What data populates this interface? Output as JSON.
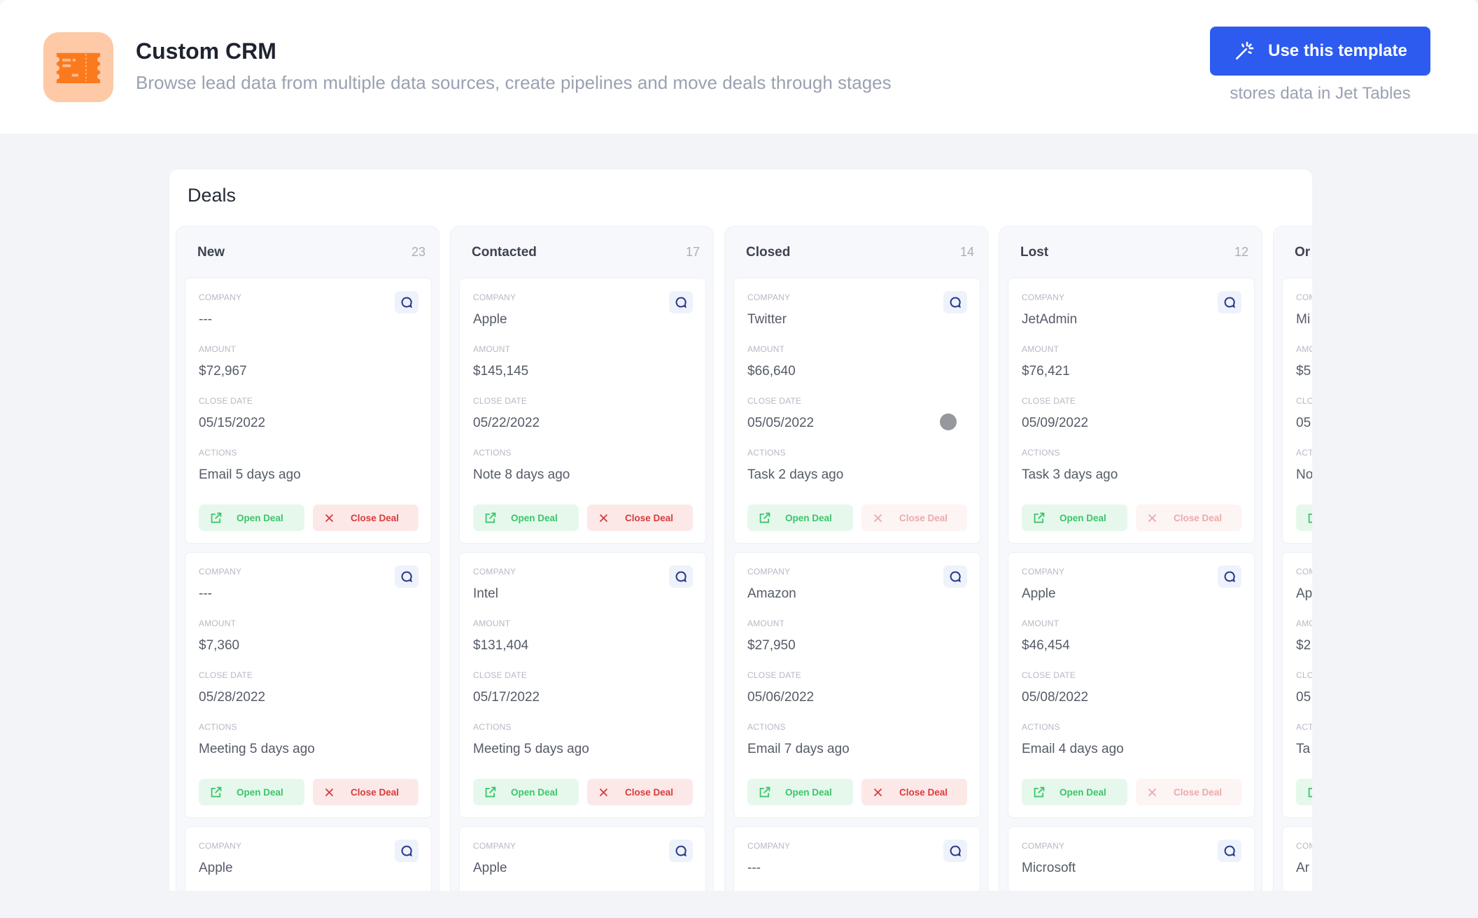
{
  "header": {
    "title": "Custom CRM",
    "subtitle": "Browse lead data from multiple data sources, create pipelines and move deals through stages",
    "use_template_label": "Use this template",
    "stores_note": "stores data in Jet Tables",
    "logo_icon": "ticket-icon",
    "accent_color": "#2d5bf0"
  },
  "board": {
    "title": "Deals",
    "labels": {
      "company": "Company",
      "amount": "Amount",
      "close_date": "Close Date",
      "actions": "Actions"
    },
    "open_label": "Open Deal",
    "close_label": "Close Deal",
    "columns": [
      {
        "name": "New",
        "count": "23",
        "cards": [
          {
            "company": "---",
            "amount": "$72,967",
            "close_date": "05/15/2022",
            "actions": "Email 5 days ago",
            "close_enabled": true
          },
          {
            "company": "---",
            "amount": "$7,360",
            "close_date": "05/28/2022",
            "actions": "Meeting 5 days ago",
            "close_enabled": true
          },
          {
            "company": "Apple"
          }
        ]
      },
      {
        "name": "Contacted",
        "count": "17",
        "cards": [
          {
            "company": "Apple",
            "amount": "$145,145",
            "close_date": "05/22/2022",
            "actions": "Note 8 days ago",
            "close_enabled": true
          },
          {
            "company": "Intel",
            "amount": "$131,404",
            "close_date": "05/17/2022",
            "actions": "Meeting 5 days ago",
            "close_enabled": true
          },
          {
            "company": "Apple"
          }
        ]
      },
      {
        "name": "Closed",
        "count": "14",
        "cards": [
          {
            "company": "Twitter",
            "amount": "$66,640",
            "close_date": "05/05/2022",
            "actions": "Task 2 days ago",
            "close_enabled": false
          },
          {
            "company": "Amazon",
            "amount": "$27,950",
            "close_date": "05/06/2022",
            "actions": "Email 7 days ago",
            "close_enabled": true
          },
          {
            "company": "---"
          }
        ]
      },
      {
        "name": "Lost",
        "count": "12",
        "cards": [
          {
            "company": "JetAdmin",
            "amount": "$76,421",
            "close_date": "05/09/2022",
            "actions": "Task 3 days ago",
            "close_enabled": false
          },
          {
            "company": "Apple",
            "amount": "$46,454",
            "close_date": "05/08/2022",
            "actions": "Email 4 days ago",
            "close_enabled": false
          },
          {
            "company": "Microsoft"
          }
        ]
      },
      {
        "name": "Or",
        "count": "",
        "cards": [
          {
            "company": "Mi",
            "amount": "$5",
            "close_date": "05",
            "actions": "No",
            "close_enabled": true
          },
          {
            "company": "Ap",
            "amount": "$2",
            "close_date": "05",
            "actions": "Ta",
            "close_enabled": true
          },
          {
            "company": "Ar"
          }
        ]
      }
    ]
  }
}
